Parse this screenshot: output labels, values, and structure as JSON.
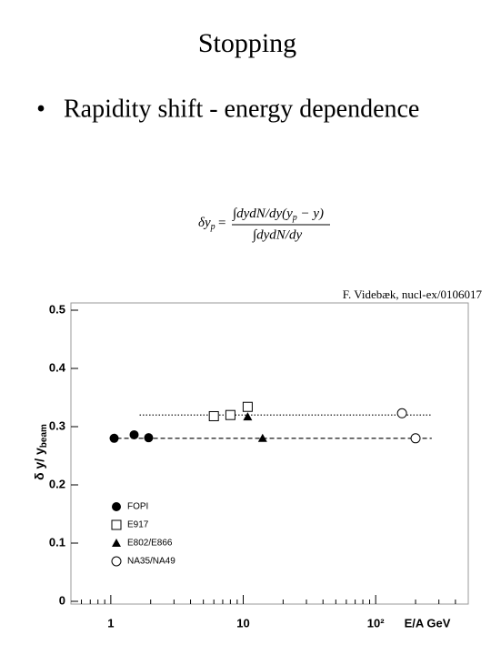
{
  "header": {
    "title": "Stopping",
    "bullet": "Rapidity shift - energy dependence"
  },
  "formula": {
    "lhs": "δy",
    "lhs_sub": "p",
    "equals": "=",
    "numerator": "∫dydN/dy(y",
    "numerator_sub": "p",
    "numerator_tail": " − y)",
    "denominator": "∫dydN/dy"
  },
  "credit": "F. Videbæk,  nucl-ex/0106017",
  "chart_data": {
    "type": "scatter",
    "xlabel": "E/A  GeV",
    "ylabel": {
      "main": "δ y/ y",
      "sub": "beam"
    },
    "log_x": true,
    "xlim": [
      0.5,
      500
    ],
    "ylim": [
      0,
      0.5
    ],
    "xticks": [
      1,
      10,
      {
        "value": 100,
        "label": "10²"
      }
    ],
    "x_minor_ticks": [
      0.6,
      0.7,
      0.8,
      0.9,
      2,
      3,
      4,
      5,
      6,
      7,
      8,
      9,
      20,
      30,
      40,
      50,
      60,
      70,
      80,
      90,
      200,
      300,
      400
    ],
    "yticks": [
      0,
      0.1,
      0.2,
      0.3,
      0.4,
      0.5
    ],
    "legend": "lower left",
    "series": [
      {
        "name": "FOPI",
        "marker": "filled-circle",
        "color": "#000000",
        "x": [
          1.06,
          1.5,
          1.93
        ],
        "values": [
          0.28,
          0.286,
          0.281
        ]
      },
      {
        "name": "E917",
        "marker": "open-square",
        "color": "#000000",
        "x": [
          6,
          8,
          10.8
        ],
        "values": [
          0.318,
          0.32,
          0.334
        ]
      },
      {
        "name": "E802/E866",
        "marker": "filled-triangle",
        "color": "#000000",
        "x": [
          10.8,
          14
        ],
        "values": [
          0.317,
          0.28
        ]
      },
      {
        "name": "NA35/NA49",
        "marker": "open-circle",
        "color": "#000000",
        "x": [
          158,
          200
        ],
        "values": [
          0.323,
          0.28
        ]
      }
    ],
    "reference_lines": [
      {
        "value": 0.32,
        "style": "dotted",
        "xrange": [
          1.65,
          265
        ]
      },
      {
        "value": 0.28,
        "style": "dashed",
        "xrange": [
          0.98,
          265
        ]
      }
    ]
  }
}
